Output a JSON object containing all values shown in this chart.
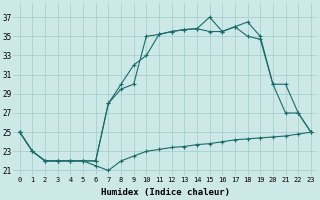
{
  "xlabel": "Humidex (Indice chaleur)",
  "background_color": "#cce9e7",
  "grid_color": "#a8d0ce",
  "line_color": "#1a6b6b",
  "xlim": [
    -0.5,
    23.5
  ],
  "ylim": [
    20.5,
    38.5
  ],
  "xticks": [
    0,
    1,
    2,
    3,
    4,
    5,
    6,
    7,
    8,
    9,
    10,
    11,
    12,
    13,
    14,
    15,
    16,
    17,
    18,
    19,
    20,
    21,
    22,
    23
  ],
  "yticks": [
    21,
    23,
    25,
    27,
    29,
    31,
    33,
    35,
    37
  ],
  "line1_x": [
    0,
    1,
    2,
    3,
    4,
    5,
    6,
    7,
    8,
    9,
    10,
    11,
    12,
    13,
    14,
    15,
    16,
    17,
    18,
    19,
    20,
    21,
    22,
    23
  ],
  "line1_y": [
    25,
    23,
    22,
    22,
    22,
    22,
    21.5,
    21,
    22,
    22.5,
    23,
    23.2,
    23.4,
    23.5,
    23.7,
    23.8,
    24,
    24.2,
    24.3,
    24.4,
    24.5,
    24.6,
    24.8,
    25
  ],
  "line2_x": [
    0,
    1,
    2,
    3,
    4,
    5,
    6,
    7,
    8,
    9,
    10,
    11,
    12,
    13,
    14,
    15,
    16,
    17,
    18,
    19,
    20,
    21,
    22,
    23
  ],
  "line2_y": [
    25,
    23,
    22,
    22,
    22,
    22,
    22,
    28,
    29.5,
    30,
    35,
    35.2,
    35.5,
    35.7,
    35.8,
    35.5,
    35.5,
    36,
    35,
    34.7,
    30,
    27,
    27,
    25
  ],
  "line3_x": [
    0,
    1,
    2,
    3,
    4,
    5,
    6,
    7,
    8,
    9,
    10,
    11,
    12,
    13,
    14,
    15,
    16,
    17,
    18,
    19,
    20,
    21,
    22,
    23
  ],
  "line3_y": [
    25,
    23,
    22,
    22,
    22,
    22,
    22,
    28,
    30,
    32,
    33,
    35.2,
    35.5,
    35.7,
    35.8,
    37,
    35.5,
    36,
    36.5,
    35,
    30,
    30,
    27,
    25
  ]
}
